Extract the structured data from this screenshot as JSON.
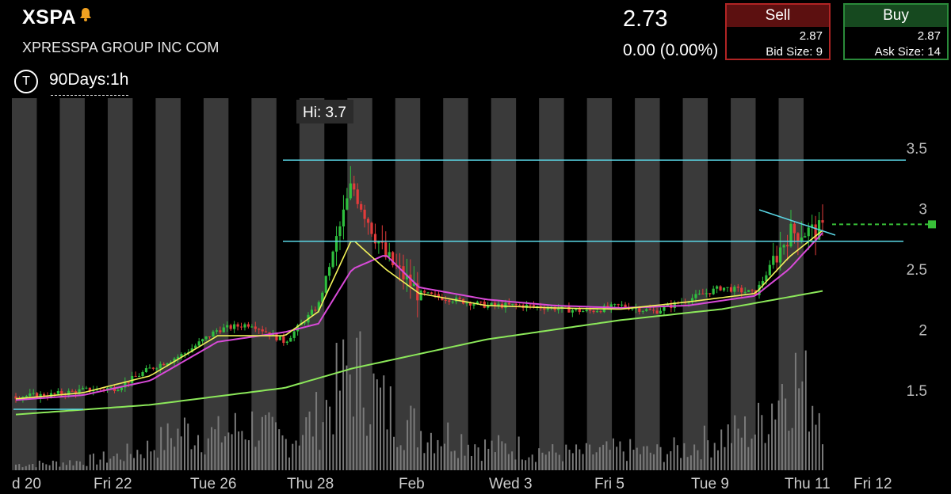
{
  "header": {
    "symbol": "XSPA",
    "company": "XPRESSPA GROUP INC COM",
    "price": "2.73",
    "change": "0.00 (0.00%)",
    "alert_icon": "bell-icon"
  },
  "sell": {
    "label": "Sell",
    "price": "2.87",
    "size_text": "Bid Size: 9"
  },
  "buy": {
    "label": "Buy",
    "price": "2.87",
    "size_text": "Ask Size: 14"
  },
  "toolbar": {
    "icon_label": "T",
    "timeframe": "90Days:1h"
  },
  "colors": {
    "background": "#000000",
    "session_band": "#3a3a3a",
    "up": "#2fbf3f",
    "down": "#e23b3b",
    "ma_short": "#f2f25a",
    "ma_mid": "#d94ad9",
    "ma_long": "#8ce85a",
    "trendline": "#5ad7e6",
    "volume": "#7a7a7a",
    "last_price": "#38c038"
  },
  "chart_data": {
    "type": "candlestick",
    "y_ticks": [
      "3.5",
      "3",
      "2.5",
      "2",
      "1.5"
    ],
    "ylim": [
      1.0,
      3.9
    ],
    "x_labels": [
      "d 20",
      "Fri 22",
      "Tue 26",
      "Thu 28",
      "Feb",
      "Wed 3",
      "Fri 5",
      "Tue 9",
      "Thu 11",
      "Fri 12"
    ],
    "annotation": "Hi: 3.7",
    "horizontal_levels": [
      3.4,
      2.73
    ],
    "last_price": 2.87,
    "sessions": 17,
    "candles_per_session": 11,
    "close_path": [
      [
        0,
        1.45
      ],
      [
        1,
        1.46
      ],
      [
        2,
        1.5
      ],
      [
        3,
        1.52
      ],
      [
        4,
        1.68
      ],
      [
        5,
        1.8
      ],
      [
        6,
        2.0
      ],
      [
        7,
        2.05
      ],
      [
        8,
        1.9
      ],
      [
        9,
        2.2
      ],
      [
        10,
        3.2
      ],
      [
        11,
        2.6
      ],
      [
        12,
        2.3
      ],
      [
        13,
        2.25
      ],
      [
        14,
        2.2
      ],
      [
        15,
        2.2
      ],
      [
        16,
        2.18
      ],
      [
        17,
        2.15
      ],
      [
        18,
        2.2
      ],
      [
        19,
        2.15
      ],
      [
        20,
        2.25
      ],
      [
        21,
        2.35
      ],
      [
        22,
        2.3
      ],
      [
        23,
        2.8
      ],
      [
        24,
        2.82
      ]
    ],
    "ma_short_path": [
      [
        0,
        1.43
      ],
      [
        2,
        1.48
      ],
      [
        4,
        1.62
      ],
      [
        6,
        1.95
      ],
      [
        8,
        1.95
      ],
      [
        9,
        2.15
      ],
      [
        10,
        2.75
      ],
      [
        11,
        2.5
      ],
      [
        12,
        2.3
      ],
      [
        14,
        2.2
      ],
      [
        16,
        2.18
      ],
      [
        18,
        2.17
      ],
      [
        20,
        2.23
      ],
      [
        22,
        2.3
      ],
      [
        23,
        2.6
      ],
      [
        24,
        2.82
      ]
    ],
    "ma_mid_path": [
      [
        0,
        1.42
      ],
      [
        2,
        1.46
      ],
      [
        4,
        1.58
      ],
      [
        6,
        1.9
      ],
      [
        8,
        1.98
      ],
      [
        9,
        2.05
      ],
      [
        10,
        2.5
      ],
      [
        11,
        2.62
      ],
      [
        12,
        2.35
      ],
      [
        14,
        2.25
      ],
      [
        16,
        2.2
      ],
      [
        18,
        2.18
      ],
      [
        20,
        2.2
      ],
      [
        22,
        2.28
      ],
      [
        23,
        2.5
      ],
      [
        24,
        2.8
      ]
    ],
    "ma_long_path": [
      [
        0,
        1.3
      ],
      [
        4,
        1.38
      ],
      [
        8,
        1.52
      ],
      [
        10,
        1.68
      ],
      [
        14,
        1.92
      ],
      [
        18,
        2.08
      ],
      [
        21,
        2.17
      ],
      [
        22,
        2.22
      ],
      [
        24,
        2.32
      ]
    ],
    "volume_scale": [
      0.05,
      0.06,
      0.08,
      0.12,
      0.2,
      0.35,
      0.3,
      0.4,
      0.25,
      0.45,
      0.9,
      0.55,
      0.35,
      0.3,
      0.2,
      0.2,
      0.15,
      0.15,
      0.18,
      0.15,
      0.2,
      0.3,
      0.35,
      0.85,
      0.55
    ]
  }
}
